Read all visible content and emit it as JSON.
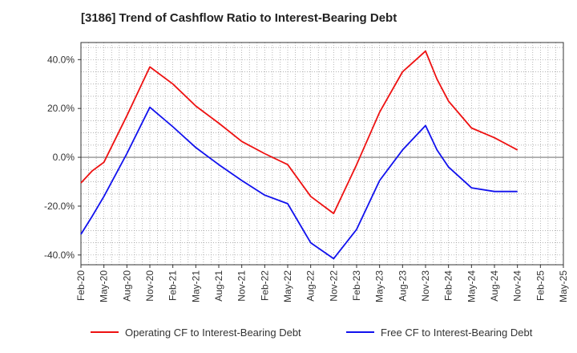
{
  "chart_data": {
    "type": "line",
    "title": "[3186]  Trend of Cashflow Ratio to Interest-Bearing Debt",
    "xlabel": "",
    "ylabel": "",
    "ylim": [
      -44,
      47
    ],
    "yticks": [
      -40,
      -20,
      0,
      20,
      40
    ],
    "ytick_labels": [
      "-40.0%",
      "-20.0%",
      "0.0%",
      "20.0%",
      "40.0%"
    ],
    "x_labels": [
      "Feb-20",
      "May-20",
      "Aug-20",
      "Nov-20",
      "Feb-21",
      "May-21",
      "Aug-21",
      "Nov-21",
      "Feb-22",
      "May-22",
      "Aug-22",
      "Nov-22",
      "Feb-23",
      "May-23",
      "Aug-23",
      "Nov-23",
      "Feb-24",
      "May-24",
      "Aug-24",
      "Nov-24",
      "Feb-25",
      "May-25"
    ],
    "grid": true,
    "legend_position": "bottom",
    "series": [
      {
        "name": "Operating CF to Interest-Bearing Debt",
        "color": "#ee1111",
        "points": [
          [
            0,
            -10.5
          ],
          [
            0.5,
            -5.5
          ],
          [
            1,
            -2
          ],
          [
            2,
            17
          ],
          [
            3,
            37
          ],
          [
            4,
            30
          ],
          [
            5,
            21
          ],
          [
            6,
            14
          ],
          [
            7,
            6.5
          ],
          [
            8,
            1.5
          ],
          [
            9,
            -3
          ],
          [
            10,
            -16
          ],
          [
            11,
            -23
          ],
          [
            12,
            -3
          ],
          [
            13,
            18.5
          ],
          [
            14,
            35
          ],
          [
            15,
            43.5
          ],
          [
            15.5,
            32
          ],
          [
            16,
            23
          ],
          [
            17,
            12
          ],
          [
            18,
            8
          ],
          [
            19,
            3
          ]
        ]
      },
      {
        "name": "Free CF to Interest-Bearing Debt",
        "color": "#1111ee",
        "points": [
          [
            0,
            -31.5
          ],
          [
            0.5,
            -24
          ],
          [
            1,
            -16
          ],
          [
            2,
            1.5
          ],
          [
            3,
            20.5
          ],
          [
            4,
            12.5
          ],
          [
            5,
            4
          ],
          [
            6,
            -3
          ],
          [
            7,
            -9.5
          ],
          [
            8,
            -15.5
          ],
          [
            9,
            -19
          ],
          [
            10,
            -35
          ],
          [
            11,
            -41.5
          ],
          [
            12,
            -29.5
          ],
          [
            13,
            -9.5
          ],
          [
            14,
            3
          ],
          [
            15,
            13
          ],
          [
            15.5,
            3
          ],
          [
            16,
            -4
          ],
          [
            17,
            -12.5
          ],
          [
            18,
            -14
          ],
          [
            19,
            -14
          ]
        ]
      }
    ]
  },
  "colors": {
    "grid": "#999999",
    "axis": "#333333"
  }
}
